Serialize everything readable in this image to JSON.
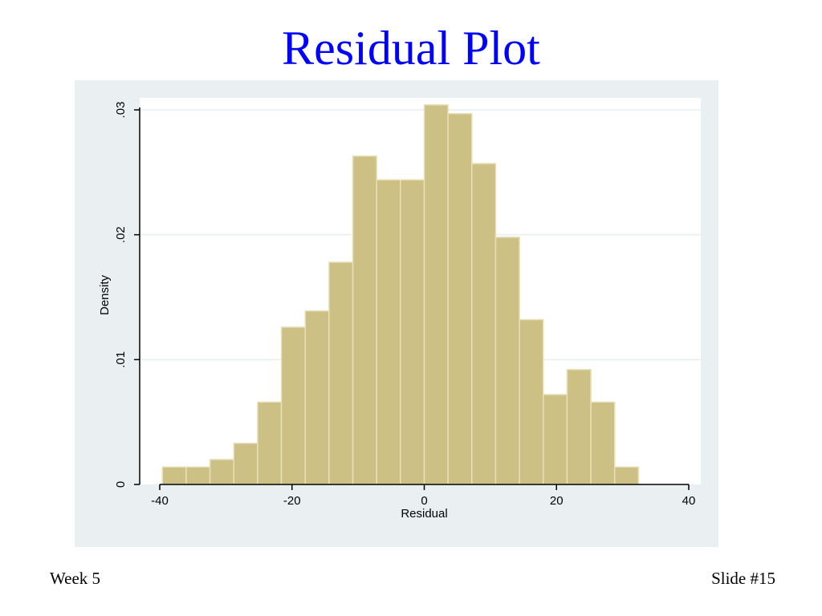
{
  "slide": {
    "title": "Residual Plot",
    "footer_left": "Week 5",
    "footer_right": "Slide #15"
  },
  "colors": {
    "title": "#0000ff",
    "outer_background": "#eaf0f2",
    "plot_background": "#ffffff",
    "bar_fill": "#cdc084",
    "bar_edge": "#e8e0b8",
    "gridline": "#e8eef0"
  },
  "chart_data": {
    "type": "bar",
    "subtype": "histogram",
    "title": "",
    "xlabel": "Residual",
    "ylabel": "Density",
    "xlim": [
      -40,
      40
    ],
    "ylim": [
      0,
      0.03
    ],
    "xticks": [
      {
        "value": -40,
        "label": "-40"
      },
      {
        "value": -20,
        "label": "-20"
      },
      {
        "value": 0,
        "label": "0"
      },
      {
        "value": 20,
        "label": "20"
      },
      {
        "value": 40,
        "label": "40"
      }
    ],
    "yticks": [
      {
        "value": 0,
        "label": "0"
      },
      {
        "value": 0.01,
        "label": ".01"
      },
      {
        "value": 0.02,
        "label": ".02"
      },
      {
        "value": 0.03,
        "label": ".03"
      }
    ],
    "grid": true,
    "bin_width": 3.6,
    "bin_start": -39.6,
    "bins": [
      {
        "left": -39.6,
        "density": 0.0014
      },
      {
        "left": -36.0,
        "density": 0.0014
      },
      {
        "left": -32.4,
        "density": 0.002
      },
      {
        "left": -28.8,
        "density": 0.0033
      },
      {
        "left": -25.2,
        "density": 0.0066
      },
      {
        "left": -21.6,
        "density": 0.0126
      },
      {
        "left": -18.0,
        "density": 0.0139
      },
      {
        "left": -14.4,
        "density": 0.0178
      },
      {
        "left": -10.8,
        "density": 0.0263
      },
      {
        "left": -7.2,
        "density": 0.0244
      },
      {
        "left": -3.6,
        "density": 0.0244
      },
      {
        "left": 0.0,
        "density": 0.0304
      },
      {
        "left": 3.6,
        "density": 0.0297
      },
      {
        "left": 7.2,
        "density": 0.0257
      },
      {
        "left": 10.8,
        "density": 0.0198
      },
      {
        "left": 14.4,
        "density": 0.0132
      },
      {
        "left": 18.0,
        "density": 0.0072
      },
      {
        "left": 21.6,
        "density": 0.0092
      },
      {
        "left": 25.2,
        "density": 0.0066
      },
      {
        "left": 28.8,
        "density": 0.0014
      }
    ]
  }
}
